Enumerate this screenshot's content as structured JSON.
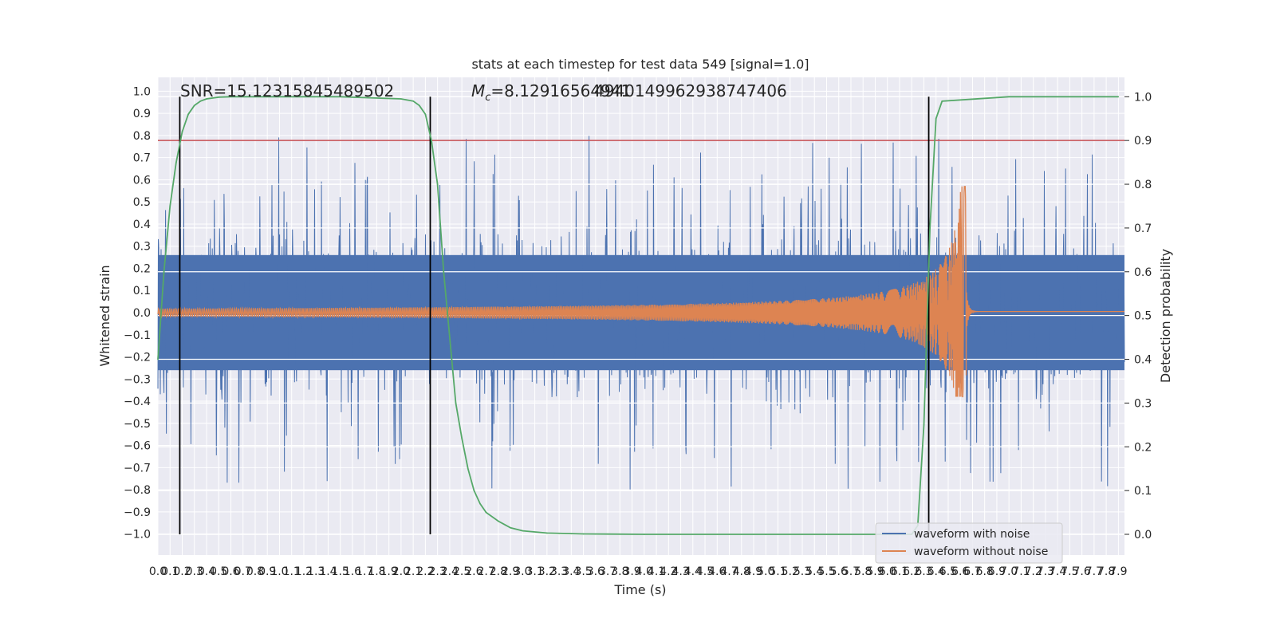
{
  "chart_data": {
    "type": "line",
    "title": "stats at each timestep for test data 549 [signal=1.0]",
    "xlabel": "Time (s)",
    "ylabel": "Whitened strain",
    "ylabel_right": "Detection probability",
    "xlim": [
      0,
      7.95
    ],
    "ylim": [
      -1.1,
      1.1
    ],
    "ylim_right": [
      -0.05,
      1.05
    ],
    "x_ticks": [
      "0.0",
      "0.1",
      "0.2",
      "0.3",
      "0.4",
      "0.5",
      "0.6",
      "0.7",
      "0.8",
      "0.9",
      "1.0",
      "1.1",
      "1.2",
      "1.3",
      "1.4",
      "1.5",
      "1.6",
      "1.7",
      "1.8",
      "1.9",
      "2.0",
      "2.1",
      "2.2",
      "2.3",
      "2.4",
      "2.5",
      "2.6",
      "2.7",
      "2.8",
      "2.9",
      "3.0",
      "3.1",
      "3.2",
      "3.3",
      "3.4",
      "3.5",
      "3.6",
      "3.7",
      "3.8",
      "3.9",
      "4.0",
      "4.1",
      "4.2",
      "4.3",
      "4.4",
      "4.5",
      "4.6",
      "4.7",
      "4.8",
      "4.9",
      "5.0",
      "5.1",
      "5.2",
      "5.3",
      "5.4",
      "5.5",
      "5.6",
      "5.7",
      "5.8",
      "5.9",
      "6.0",
      "6.1",
      "6.2",
      "6.3",
      "6.4",
      "6.5",
      "6.6",
      "6.7",
      "6.8",
      "6.9",
      "7.0",
      "7.1",
      "7.2",
      "7.3",
      "7.4",
      "7.5",
      "7.6",
      "7.7",
      "7.8",
      "7.9"
    ],
    "y_ticks": [
      "1.0",
      "0.9",
      "0.8",
      "0.7",
      "0.6",
      "0.5",
      "0.4",
      "0.3",
      "0.2",
      "0.1",
      "0.0",
      "−0.1",
      "−0.2",
      "−0.3",
      "−0.4",
      "−0.5",
      "−0.6",
      "−0.7",
      "−0.8",
      "−0.9",
      "−1.0"
    ],
    "y_ticks_right": [
      "1.0",
      "0.9",
      "0.8",
      "0.7",
      "0.6",
      "0.5",
      "0.4",
      "0.3",
      "0.2",
      "0.1",
      "0.0"
    ],
    "annotations": {
      "snr": "SNR=15.12315845489502",
      "mc_prefix": "M",
      "mc_sub": "c",
      "mc_value": "=8.12916564941",
      "mc_overlap": "4940149962938747406"
    },
    "series": [
      {
        "name": "waveform with noise",
        "color": "#4c72b0",
        "style": "noise",
        "amplitude_range": [
          -1.0,
          0.97
        ]
      },
      {
        "name": "waveform without noise",
        "color": "#dd8452",
        "style": "chirp",
        "peak_time": 6.65,
        "peak_value": 0.57,
        "min_value": -0.38
      },
      {
        "name": "",
        "color": "#55a868",
        "axis": "right",
        "x": [
          0.0,
          0.05,
          0.1,
          0.15,
          0.2,
          0.25,
          0.3,
          0.35,
          0.4,
          0.5,
          0.6,
          0.8,
          1.0,
          1.5,
          2.0,
          2.1,
          2.15,
          2.2,
          2.25,
          2.3,
          2.35,
          2.4,
          2.45,
          2.5,
          2.55,
          2.6,
          2.65,
          2.7,
          2.8,
          2.9,
          3.0,
          3.2,
          3.5,
          4.0,
          5.0,
          6.0,
          6.2,
          6.25,
          6.3,
          6.35,
          6.4,
          6.45,
          7.0,
          7.9
        ],
        "y": [
          0.4,
          0.6,
          0.75,
          0.85,
          0.92,
          0.96,
          0.98,
          0.99,
          0.995,
          0.999,
          1.0,
          1.0,
          1.0,
          1.0,
          0.995,
          0.99,
          0.98,
          0.96,
          0.9,
          0.8,
          0.6,
          0.45,
          0.3,
          0.22,
          0.15,
          0.1,
          0.07,
          0.05,
          0.03,
          0.015,
          0.008,
          0.003,
          0.001,
          0.0,
          0.0,
          0.0,
          0.0,
          0.02,
          0.25,
          0.7,
          0.95,
          0.99,
          1.0,
          1.0
        ]
      },
      {
        "name": "",
        "color": "#c44e52",
        "axis": "right",
        "style": "hline",
        "y": 0.9
      }
    ],
    "vlines": [
      0.18,
      2.24,
      6.34
    ],
    "vline_color": "#000000",
    "vline_range": [
      0.0,
      1.0
    ],
    "legend": {
      "position": "bottom-right",
      "entries": [
        "waveform with noise",
        "waveform without noise"
      ]
    },
    "grid": true,
    "background": "#eaeaf2",
    "grid_color": "#ffffff"
  }
}
